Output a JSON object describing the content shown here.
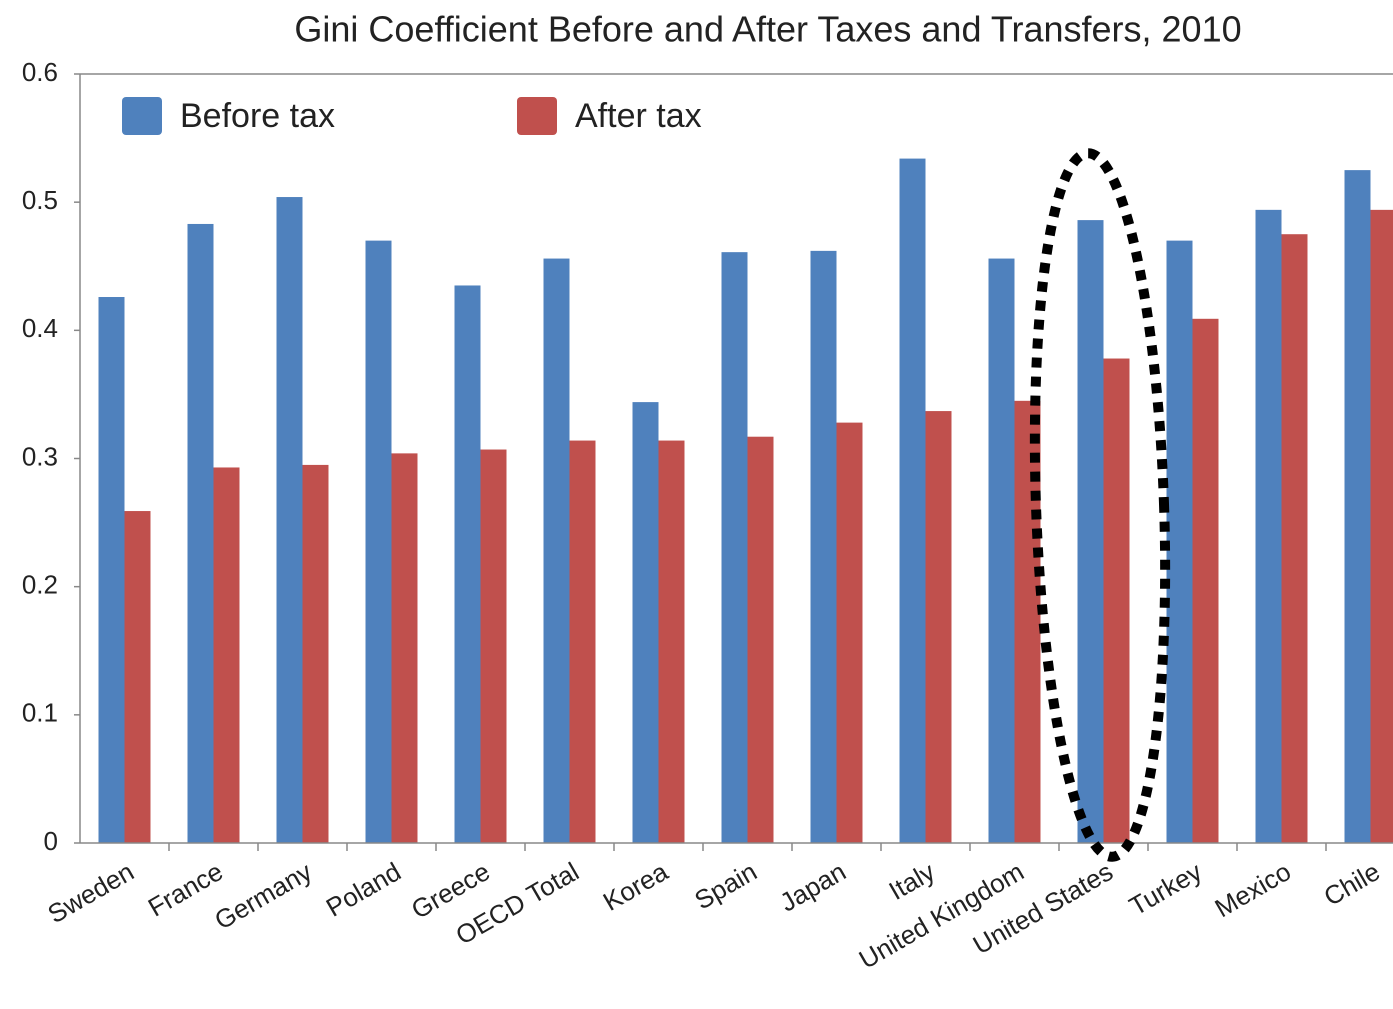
{
  "chart_data": {
    "type": "bar",
    "title": "Gini Coefficient Before and After Taxes and Transfers, 2010",
    "categories": [
      "Sweden",
      "France",
      "Germany",
      "Poland",
      "Greece",
      "OECD Total",
      "Korea",
      "Spain",
      "Japan",
      "Italy",
      "United Kingdom",
      "United States",
      "Turkey",
      "Mexico",
      "Chile"
    ],
    "series": [
      {
        "name": "Before tax",
        "color": "#4f81bd",
        "values": [
          0.426,
          0.483,
          0.504,
          0.47,
          0.435,
          0.456,
          0.344,
          0.461,
          0.462,
          0.534,
          0.456,
          0.486,
          0.47,
          0.494,
          0.525
        ]
      },
      {
        "name": "After tax",
        "color": "#c0504d",
        "values": [
          0.259,
          0.293,
          0.295,
          0.304,
          0.307,
          0.314,
          0.314,
          0.317,
          0.328,
          0.337,
          0.345,
          0.378,
          0.409,
          0.475,
          0.494
        ]
      }
    ],
    "ylim": [
      0,
      0.6
    ],
    "yticks": [
      0,
      0.1,
      0.2,
      0.3,
      0.4,
      0.5,
      0.6
    ],
    "legend": "top-left"
  }
}
